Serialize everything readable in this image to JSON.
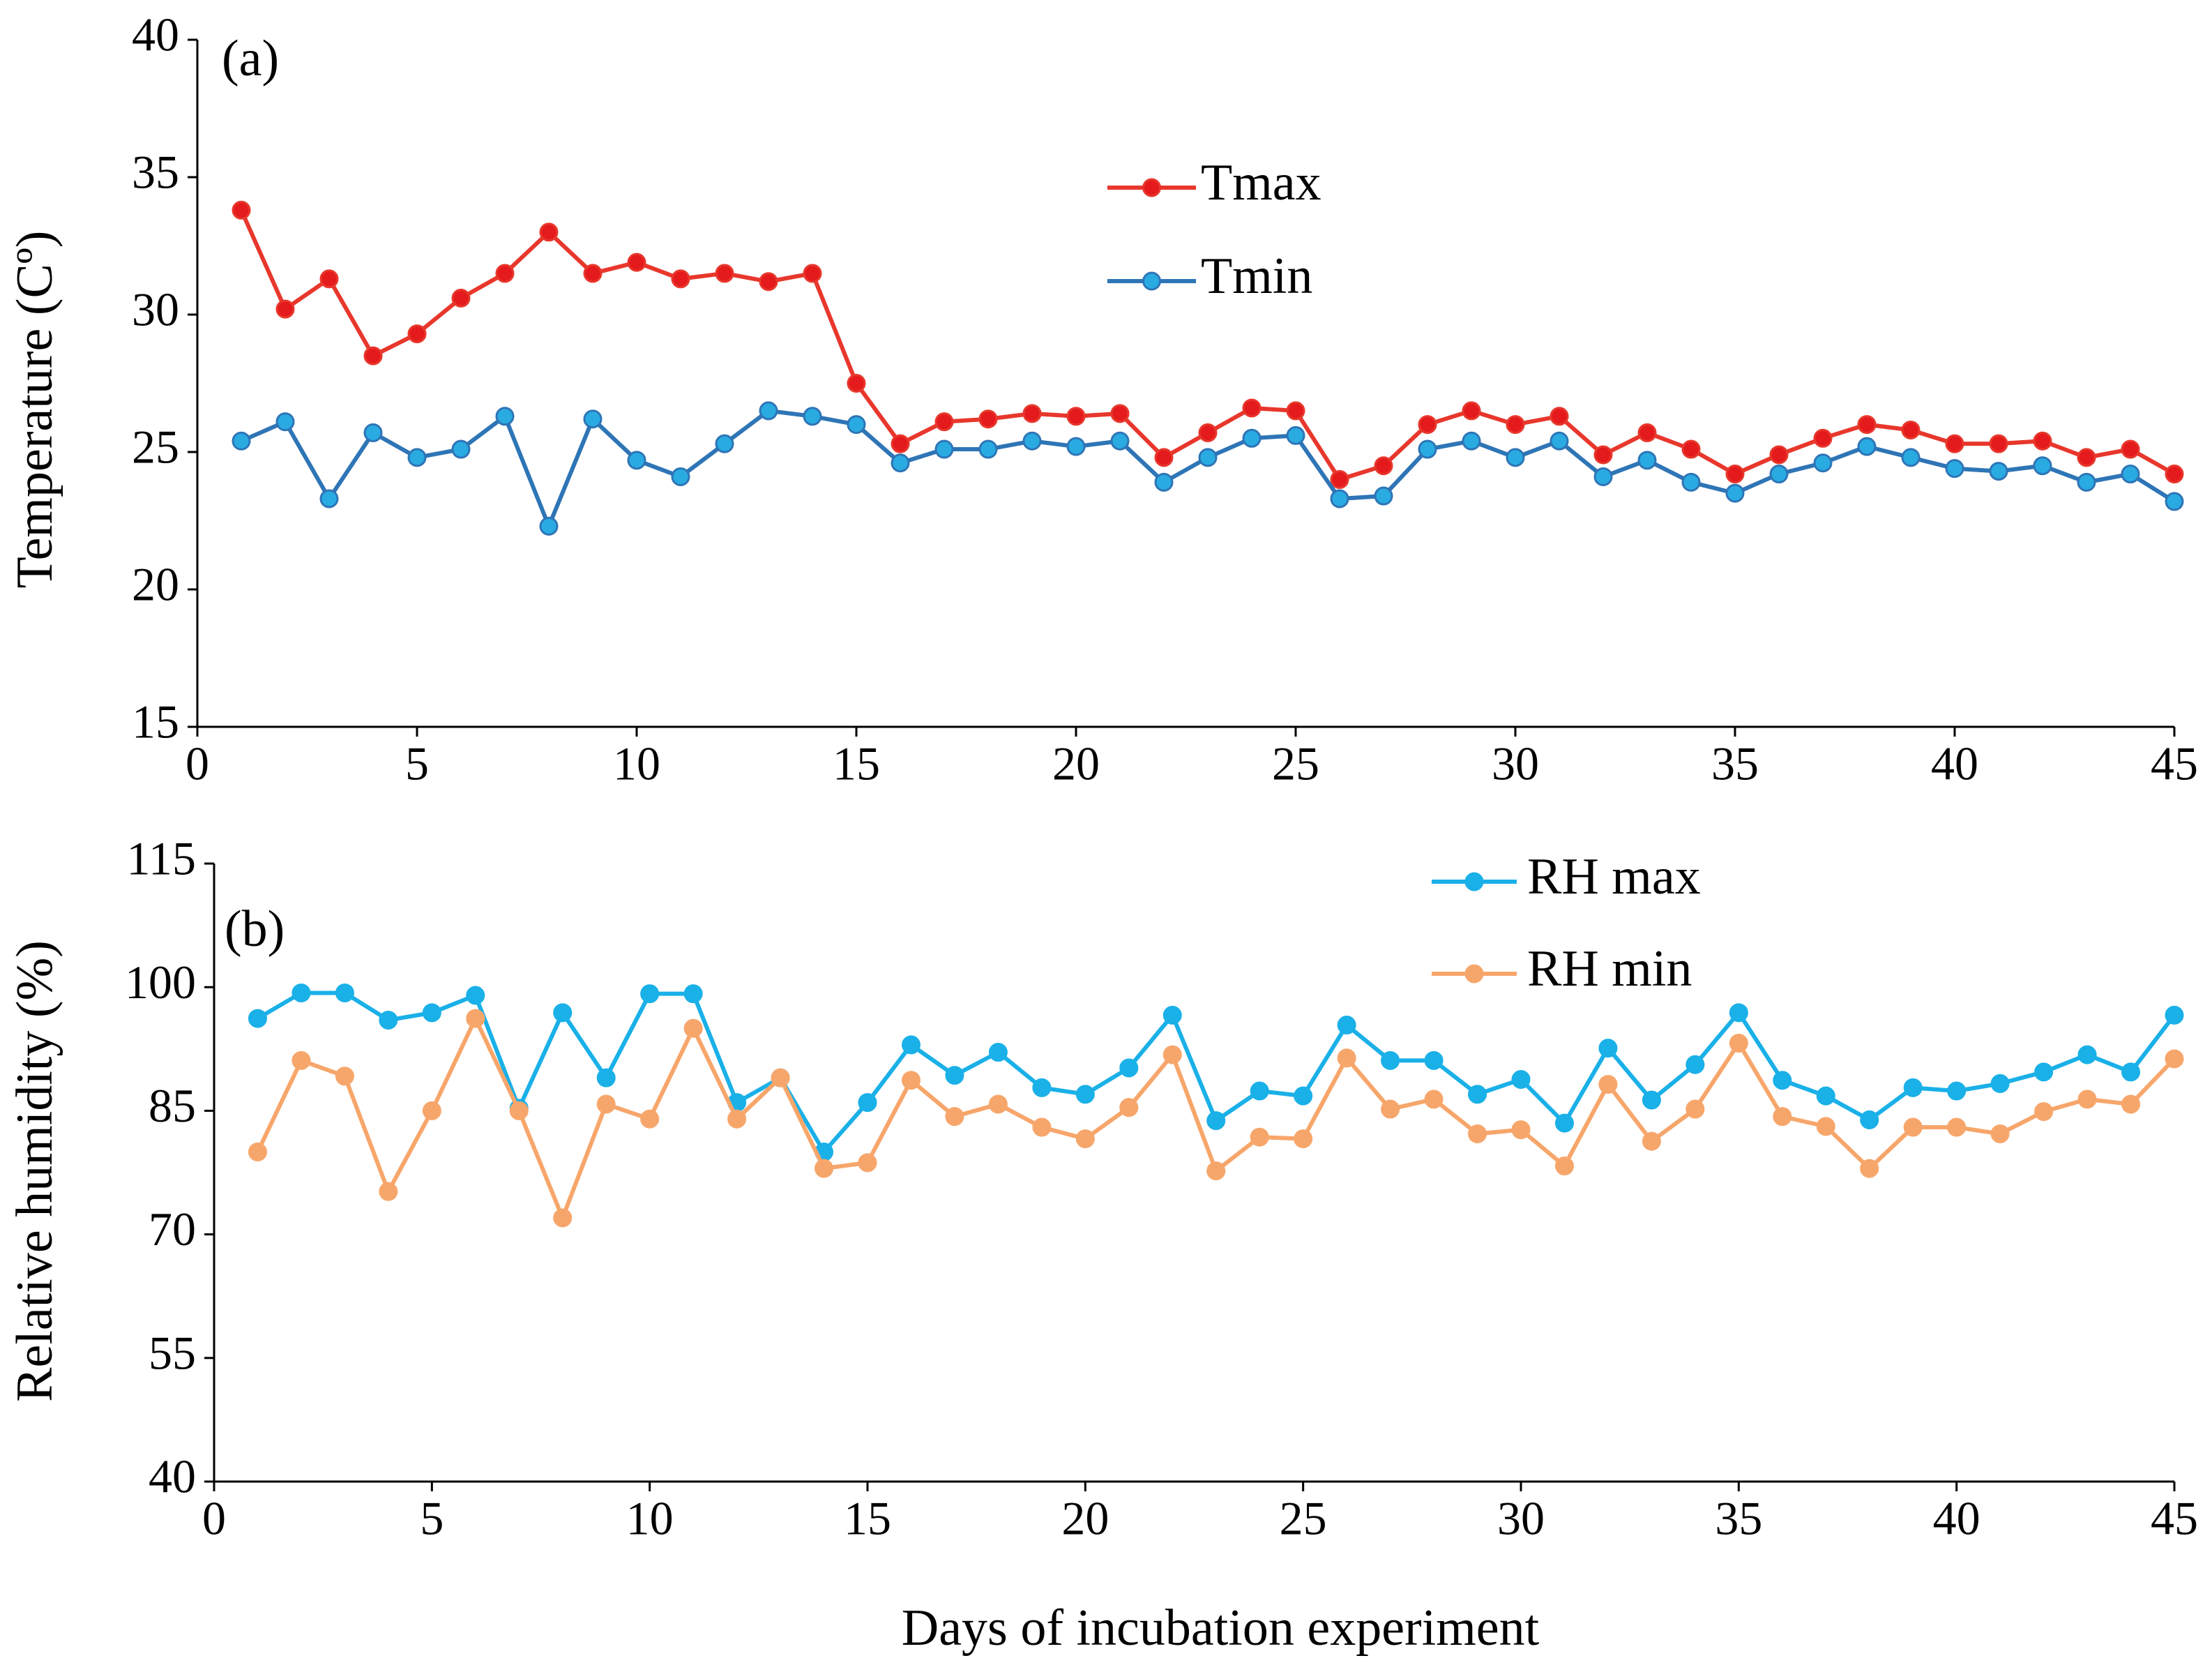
{
  "chart_data": [
    {
      "type": "line",
      "label": "(a)",
      "ylabel": "Temperature (Cº)",
      "x": [
        1,
        2,
        3,
        4,
        5,
        6,
        7,
        8,
        9,
        10,
        11,
        12,
        13,
        14,
        15,
        16,
        17,
        18,
        19,
        20,
        21,
        22,
        23,
        24,
        25,
        26,
        27,
        28,
        29,
        30,
        31,
        32,
        33,
        34,
        35,
        36,
        37,
        38,
        39,
        40,
        41,
        42,
        43,
        44,
        45
      ],
      "series": [
        {
          "name": "Tmax",
          "color": "#e8372c",
          "marker_color": "#e41a1c",
          "values": [
            33.8,
            30.2,
            31.3,
            28.5,
            29.3,
            30.6,
            31.5,
            33.0,
            31.5,
            31.9,
            31.3,
            31.5,
            31.2,
            31.5,
            27.5,
            25.3,
            26.1,
            26.2,
            26.4,
            26.3,
            26.4,
            24.8,
            25.7,
            26.6,
            26.5,
            24.0,
            24.5,
            26.0,
            26.5,
            26.0,
            26.3,
            24.9,
            25.7,
            25.1,
            24.2,
            24.9,
            25.5,
            26.0,
            25.8,
            25.3,
            25.3,
            25.4,
            24.8,
            25.1,
            24.2
          ]
        },
        {
          "name": "Tmin",
          "color": "#2e75b6",
          "marker_color": "#29abe2",
          "values": [
            25.4,
            26.1,
            23.3,
            25.7,
            24.8,
            25.1,
            26.3,
            22.3,
            26.2,
            24.7,
            24.1,
            25.3,
            26.5,
            26.3,
            26.0,
            24.6,
            25.1,
            25.1,
            25.4,
            25.2,
            25.4,
            23.9,
            24.8,
            25.5,
            25.6,
            23.3,
            23.4,
            25.1,
            25.4,
            24.8,
            25.4,
            24.1,
            24.7,
            23.9,
            23.5,
            24.2,
            24.6,
            25.2,
            24.8,
            24.4,
            24.3,
            24.5,
            23.9,
            24.2,
            23.2
          ]
        }
      ],
      "xlim": [
        0,
        45
      ],
      "xticks": [
        0,
        5,
        10,
        15,
        20,
        25,
        30,
        35,
        40,
        45
      ],
      "ylim": [
        15,
        40
      ],
      "yticks": [
        15,
        20,
        25,
        30,
        35,
        40
      ]
    },
    {
      "type": "line",
      "label": "(b)",
      "ylabel": "Relative humidity  (%)",
      "xlabel": "Days of  incubation experiment",
      "x": [
        1,
        2,
        3,
        4,
        5,
        6,
        7,
        8,
        9,
        10,
        11,
        12,
        13,
        14,
        15,
        16,
        17,
        18,
        19,
        20,
        21,
        22,
        23,
        24,
        25,
        26,
        27,
        28,
        29,
        30,
        31,
        32,
        33,
        34,
        35,
        36,
        37,
        38,
        39,
        40,
        41,
        42,
        43,
        44,
        45
      ],
      "series": [
        {
          "name": "RH max",
          "color": "#1ab0e8",
          "marker_color": "#1ab0e8",
          "values": [
            96.2,
            99.3,
            99.3,
            96,
            96.9,
            99,
            85.3,
            96.9,
            89,
            99.2,
            99.2,
            86,
            89,
            80,
            86,
            93,
            89.3,
            92.1,
            87.8,
            87,
            90.2,
            96.6,
            83.8,
            87.4,
            86.8,
            95.4,
            91.1,
            91.1,
            87,
            88.8,
            83.5,
            92.6,
            86.3,
            90.6,
            96.9,
            88.7,
            86.8,
            83.9,
            87.8,
            87.4,
            88.3,
            89.7,
            91.8,
            89.7,
            96.6
          ]
        },
        {
          "name": "RH min",
          "color": "#f7a66b",
          "marker_color": "#f7a66b",
          "values": [
            80,
            91.1,
            89.2,
            75.2,
            85,
            96.2,
            85,
            72,
            85.8,
            84,
            95,
            84,
            89,
            78,
            78.7,
            88.7,
            84.3,
            85.8,
            83,
            81.6,
            85.4,
            91.8,
            77.7,
            81.8,
            81.6,
            91.4,
            85.2,
            86.4,
            82.2,
            82.7,
            78.3,
            88.2,
            81.3,
            85.2,
            93.2,
            84.3,
            83.1,
            78,
            83,
            83,
            82.2,
            84.9,
            86.4,
            85.8,
            91.3
          ]
        }
      ],
      "xlim": [
        0,
        45
      ],
      "xticks": [
        0,
        5,
        10,
        15,
        20,
        25,
        30,
        35,
        40,
        45
      ],
      "ylim": [
        40,
        115
      ],
      "yticks": [
        40,
        55,
        70,
        85,
        100,
        115
      ]
    }
  ]
}
